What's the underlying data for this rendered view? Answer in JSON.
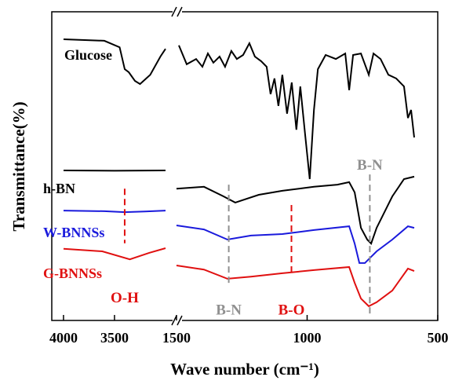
{
  "chart_data": {
    "type": "line",
    "xlabel": "Wave number (cm⁻¹)",
    "ylabel": "Transmittance(%)",
    "ylim": [
      0,
      100
    ],
    "x_segments": [
      {
        "xlim": [
          4115,
          2892
        ],
        "xticks": [
          4000,
          3500
        ]
      },
      {
        "xlim": [
          1500,
          500
        ],
        "xticks": [
          1500,
          1000,
          500
        ]
      }
    ],
    "series": [
      {
        "name": "Glucose",
        "color": "#000000",
        "segments": [
          {
            "x": [
              4000,
              3600,
              3450,
              3400,
              3360,
              3300,
              3250,
              3150,
              3050,
              3000
            ],
            "values": [
              91.1,
              90.6,
              88.5,
              81.4,
              80.4,
              77.6,
              76.6,
              79.6,
              85.5,
              88.0
            ]
          },
          {
            "x": [
              1491,
              1461,
              1425,
              1401,
              1380,
              1359,
              1335,
              1314,
              1290,
              1269,
              1245,
              1221,
              1200,
              1176,
              1155,
              1140,
              1125,
              1110,
              1095,
              1077,
              1059,
              1041,
              1026,
              1008,
              990,
              974,
              959,
              929,
              890,
              854,
              839,
              824,
              794,
              764,
              746,
              719,
              689,
              659,
              629,
              614,
              602,
              590
            ],
            "values": [
              89.1,
              83.0,
              84.7,
              82.2,
              86.5,
              83.5,
              85.5,
              82.2,
              87.3,
              84.7,
              86.0,
              89.8,
              85.5,
              84.0,
              82.2,
              73.3,
              78.4,
              69.5,
              79.6,
              67.0,
              77.1,
              61.8,
              75.8,
              60.6,
              45.8,
              68.2,
              81.4,
              86.0,
              84.7,
              86.5,
              74.6,
              86.0,
              86.5,
              79.6,
              86.5,
              84.7,
              79.6,
              78.4,
              75.8,
              65.6,
              68.2,
              59.3
            ]
          }
        ]
      },
      {
        "name": "h-BN",
        "color": "#000000",
        "segments": [
          {
            "x": [
              4000,
              3500,
              3000
            ],
            "values": [
              48.6,
              48.5,
              48.6
            ]
          },
          {
            "x": [
              1500,
              1395,
              1320,
              1275,
              1185,
              1095,
              974,
              884,
              839,
              818,
              794,
              770,
              755,
              734,
              674,
              629,
              590
            ],
            "values": [
              42.7,
              43.3,
              40.2,
              38.2,
              40.7,
              42.0,
              43.3,
              44.0,
              44.8,
              41.5,
              30.0,
              26.2,
              24.9,
              30.0,
              40.2,
              45.8,
              46.6
            ]
          }
        ]
      },
      {
        "name": "W-BNNSs",
        "color": "#1a1adc",
        "segments": [
          {
            "x": [
              4000,
              3600,
              3400,
              3200,
              3000
            ],
            "values": [
              35.6,
              35.4,
              35.1,
              35.3,
              35.6
            ]
          },
          {
            "x": [
              1500,
              1395,
              1305,
              1215,
              1095,
              974,
              839,
              818,
              800,
              779,
              734,
              674,
              614,
              590
            ],
            "values": [
              30.8,
              29.5,
              26.2,
              27.5,
              28.0,
              29.3,
              30.5,
              24.9,
              18.6,
              18.6,
              22.4,
              26.2,
              30.5,
              30.0
            ]
          }
        ]
      },
      {
        "name": "G-BNNSs",
        "color": "#e01010",
        "segments": [
          {
            "x": [
              4000,
              3620,
              3350,
              3160,
              3000
            ],
            "values": [
              23.2,
              22.4,
              19.8,
              21.9,
              23.4
            ]
          },
          {
            "x": [
              1500,
              1395,
              1305,
              1215,
              1095,
              974,
              839,
              818,
              794,
              764,
              734,
              674,
              614,
              590
            ],
            "values": [
              17.8,
              16.5,
              13.5,
              14.2,
              15.3,
              16.3,
              17.3,
              12.2,
              7.1,
              4.6,
              5.9,
              9.7,
              16.8,
              16.0
            ]
          }
        ]
      }
    ],
    "annotations": [
      {
        "text": "O-H",
        "x": 3400,
        "y": [
          42.7,
          25
        ],
        "label_y": 7,
        "color": "#e01010"
      },
      {
        "text": "B-N",
        "x": 1300,
        "y": [
          44,
          12
        ],
        "label_y": 3,
        "color": "#909090"
      },
      {
        "text": "B-O",
        "x": 1060,
        "y": [
          37.4,
          15
        ],
        "label_y": 3,
        "color": "#e01010"
      },
      {
        "text": "B-N",
        "x": 760,
        "y": [
          47.3,
          2
        ],
        "label_y": 50,
        "color": "#909090"
      }
    ]
  }
}
